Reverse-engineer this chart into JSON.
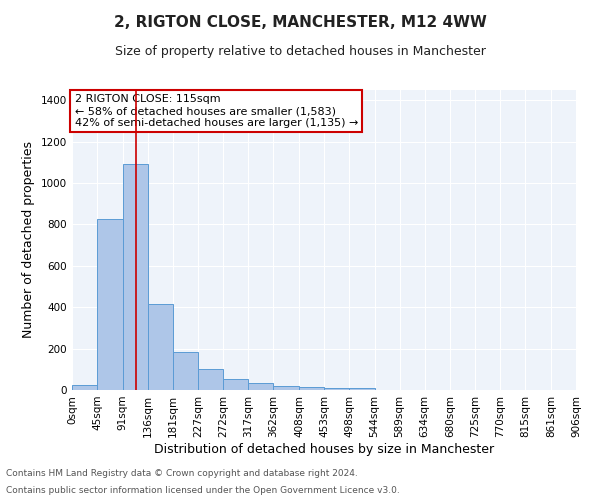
{
  "title": "2, RIGTON CLOSE, MANCHESTER, M12 4WW",
  "subtitle": "Size of property relative to detached houses in Manchester",
  "xlabel": "Distribution of detached houses by size in Manchester",
  "ylabel": "Number of detached properties",
  "footnote1": "Contains HM Land Registry data © Crown copyright and database right 2024.",
  "footnote2": "Contains public sector information licensed under the Open Government Licence v3.0.",
  "annotation_line1": "2 RIGTON CLOSE: 115sqm",
  "annotation_line2": "← 58% of detached houses are smaller (1,583)",
  "annotation_line3": "42% of semi-detached houses are larger (1,135) →",
  "bar_edges": [
    0,
    45,
    91,
    136,
    181,
    227,
    272,
    317,
    362,
    408,
    453,
    498,
    544,
    589,
    634,
    680,
    725,
    770,
    815,
    861,
    906
  ],
  "bar_heights": [
    25,
    825,
    1090,
    415,
    185,
    100,
    55,
    35,
    20,
    13,
    10,
    12,
    0,
    0,
    0,
    0,
    0,
    0,
    0,
    0
  ],
  "bar_color": "#aec6e8",
  "bar_edge_color": "#5b9bd5",
  "vline_x": 115,
  "vline_color": "#cc0000",
  "ylim": [
    0,
    1450
  ],
  "yticks": [
    0,
    200,
    400,
    600,
    800,
    1000,
    1200,
    1400
  ],
  "bg_color": "#eef3fa",
  "grid_color": "#ffffff",
  "annotation_box_color": "#cc0000",
  "title_fontsize": 11,
  "subtitle_fontsize": 9,
  "xlabel_fontsize": 9,
  "ylabel_fontsize": 9,
  "tick_fontsize": 7.5,
  "annotation_fontsize": 8,
  "footnote_fontsize": 6.5
}
